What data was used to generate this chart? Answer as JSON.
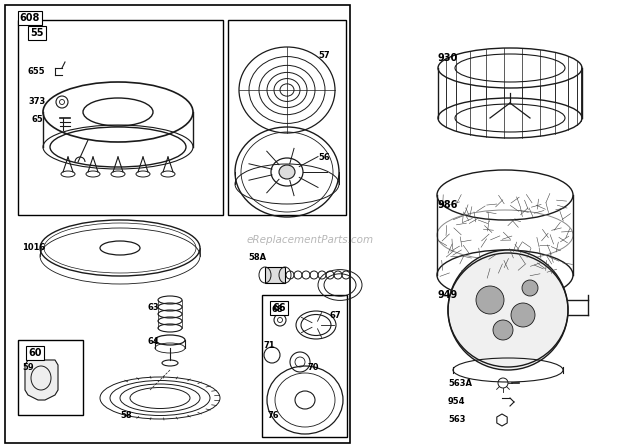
{
  "bg_color": "#ffffff",
  "dark": "#1a1a1a",
  "gray": "#666666",
  "watermark": "eReplacementParts.com",
  "figsize": [
    6.2,
    4.46
  ],
  "dpi": 100,
  "xlim": [
    0,
    620
  ],
  "ylim": [
    0,
    446
  ]
}
